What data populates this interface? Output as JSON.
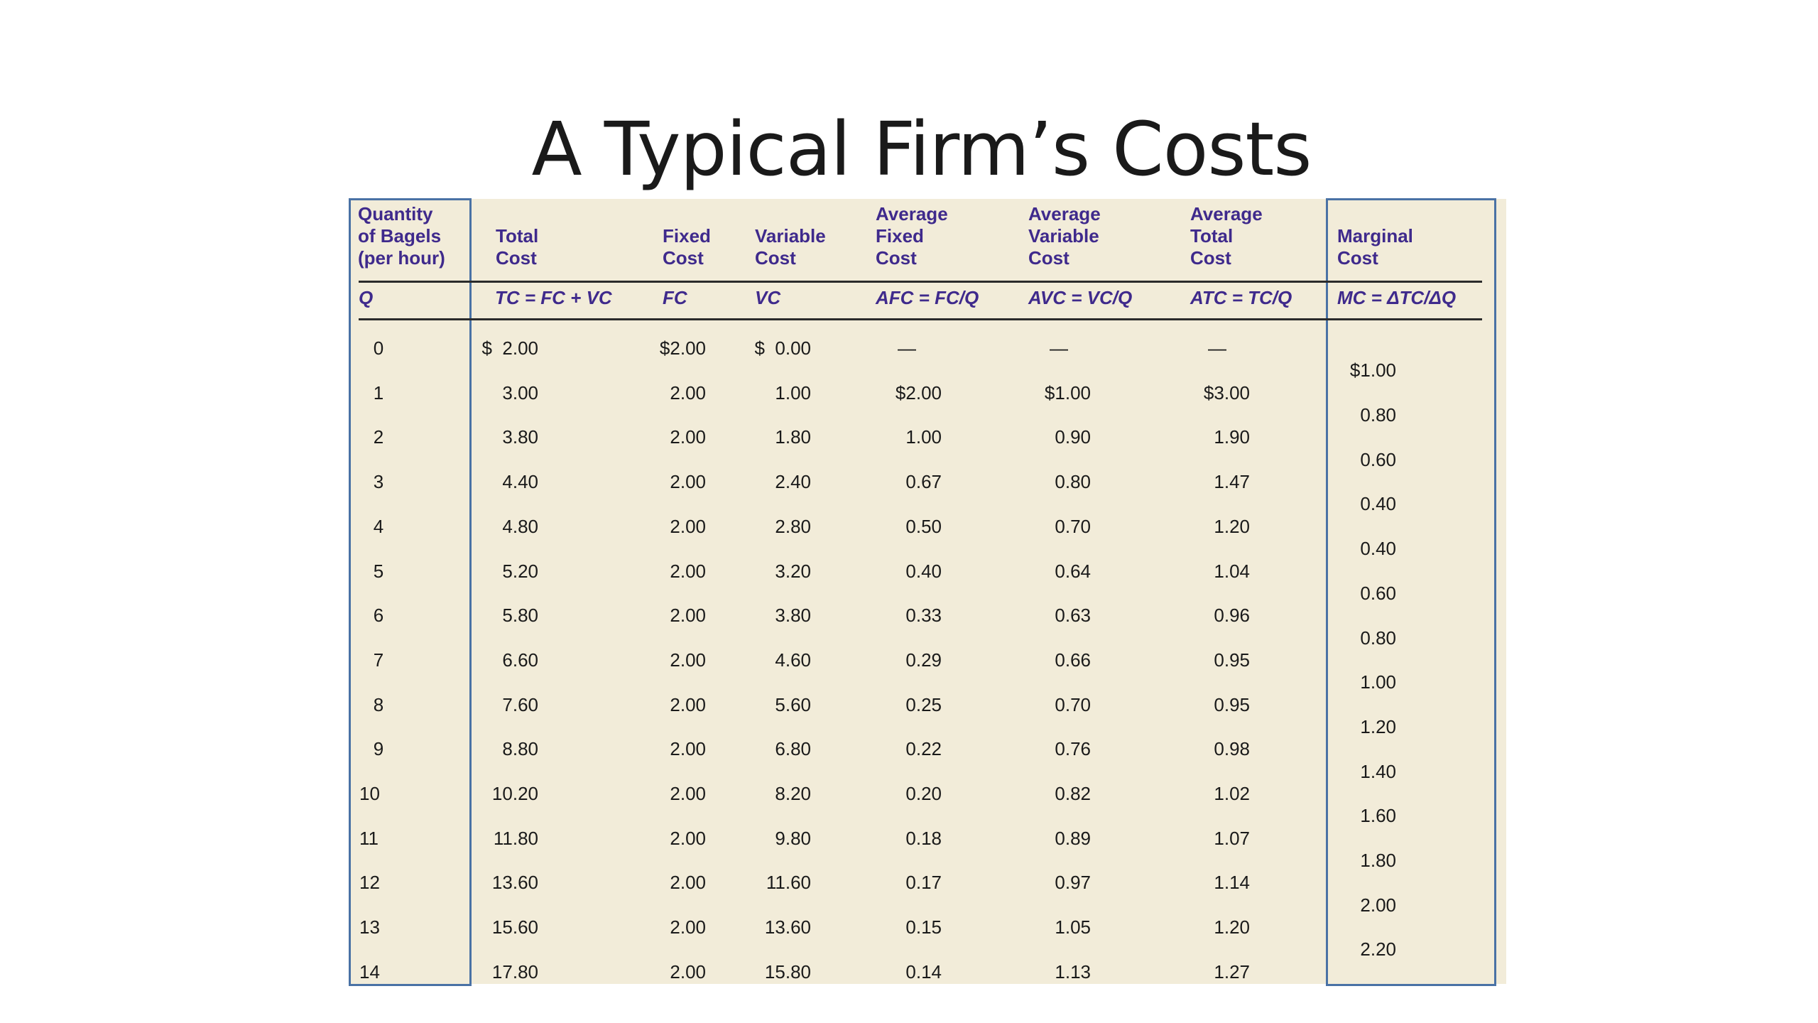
{
  "title": "A Typical Firm’s Costs",
  "headers": {
    "q": "Quantity\nof Bagels\n(per hour)",
    "tc": "Total\nCost",
    "fc": "Fixed\nCost",
    "vc": "Variable\nCost",
    "afc": "Average\nFixed\nCost",
    "avc": "Average\nVariable\nCost",
    "atc": "Average\nTotal\nCost",
    "mc": "Marginal\nCost"
  },
  "symbols": {
    "q": "Q",
    "tc": "TC = FC + VC",
    "fc": "FC",
    "vc": "VC",
    "afc": "AFC = FC/Q",
    "avc": "AVC = VC/Q",
    "atc": "ATC = TC/Q",
    "mc": "MC = ΔTC/ΔQ"
  },
  "rows": [
    {
      "q": "0",
      "tc": "$  2.00",
      "fc": "$2.00",
      "vc": "$  0.00",
      "afc": "—",
      "avc": "—",
      "atc": "—"
    },
    {
      "q": "1",
      "tc": "3.00",
      "fc": "2.00",
      "vc": "1.00",
      "afc": "$2.00",
      "avc": "$1.00",
      "atc": "$3.00"
    },
    {
      "q": "2",
      "tc": "3.80",
      "fc": "2.00",
      "vc": "1.80",
      "afc": "1.00",
      "avc": "0.90",
      "atc": "1.90"
    },
    {
      "q": "3",
      "tc": "4.40",
      "fc": "2.00",
      "vc": "2.40",
      "afc": "0.67",
      "avc": "0.80",
      "atc": "1.47"
    },
    {
      "q": "4",
      "tc": "4.80",
      "fc": "2.00",
      "vc": "2.80",
      "afc": "0.50",
      "avc": "0.70",
      "atc": "1.20"
    },
    {
      "q": "5",
      "tc": "5.20",
      "fc": "2.00",
      "vc": "3.20",
      "afc": "0.40",
      "avc": "0.64",
      "atc": "1.04"
    },
    {
      "q": "6",
      "tc": "5.80",
      "fc": "2.00",
      "vc": "3.80",
      "afc": "0.33",
      "avc": "0.63",
      "atc": "0.96"
    },
    {
      "q": "7",
      "tc": "6.60",
      "fc": "2.00",
      "vc": "4.60",
      "afc": "0.29",
      "avc": "0.66",
      "atc": "0.95"
    },
    {
      "q": "8",
      "tc": "7.60",
      "fc": "2.00",
      "vc": "5.60",
      "afc": "0.25",
      "avc": "0.70",
      "atc": "0.95"
    },
    {
      "q": "9",
      "tc": "8.80",
      "fc": "2.00",
      "vc": "6.80",
      "afc": "0.22",
      "avc": "0.76",
      "atc": "0.98"
    },
    {
      "q": "10",
      "tc": "10.20",
      "fc": "2.00",
      "vc": "8.20",
      "afc": "0.20",
      "avc": "0.82",
      "atc": "1.02"
    },
    {
      "q": "11",
      "tc": "11.80",
      "fc": "2.00",
      "vc": "9.80",
      "afc": "0.18",
      "avc": "0.89",
      "atc": "1.07"
    },
    {
      "q": "12",
      "tc": "13.60",
      "fc": "2.00",
      "vc": "11.60",
      "afc": "0.17",
      "avc": "0.97",
      "atc": "1.14"
    },
    {
      "q": "13",
      "tc": "15.60",
      "fc": "2.00",
      "vc": "13.60",
      "afc": "0.15",
      "avc": "1.05",
      "atc": "1.20"
    },
    {
      "q": "14",
      "tc": "17.80",
      "fc": "2.00",
      "vc": "15.80",
      "afc": "0.14",
      "avc": "1.13",
      "atc": "1.27"
    }
  ],
  "marginal_cost": [
    "$1.00",
    "0.80",
    "0.60",
    "0.40",
    "0.40",
    "0.60",
    "0.80",
    "1.00",
    "1.20",
    "1.40",
    "1.60",
    "1.80",
    "2.00",
    "2.20"
  ],
  "colors": {
    "header_text": "#3f2a8c",
    "panel": "#f2ecd9",
    "box_border": "#4a72a5",
    "rule": "#2b2b2b"
  }
}
